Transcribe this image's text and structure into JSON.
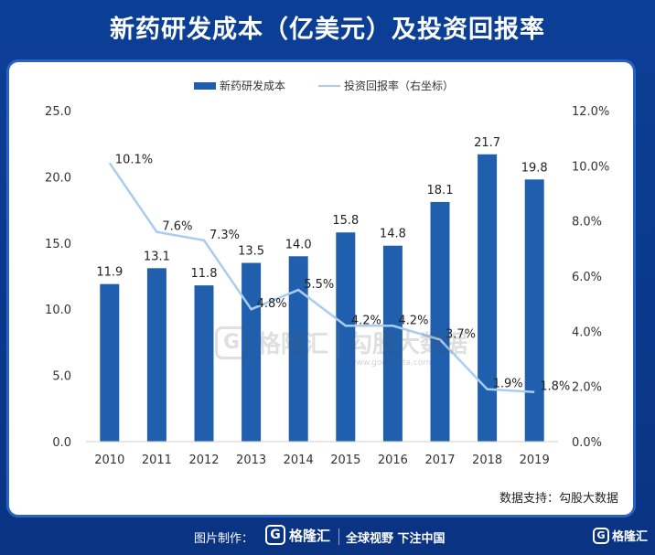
{
  "title": "新药研发成本（亿美元）及投资回报率",
  "source": "数据支持：勾股大数据",
  "footer": {
    "made_by": "图片制作：",
    "logo_text": "格隆汇",
    "slogan": "全球视野 下注中国",
    "corner_logo": "格隆汇"
  },
  "watermark": {
    "left": "格隆汇",
    "right": "勾股大数据",
    "sub": "www.gogudata.com"
  },
  "colors": {
    "bar": "#1f5fae",
    "line": "#a9cdf0",
    "background": "#0a3a8c"
  },
  "chart_data": {
    "type": "bar",
    "categories": [
      "2010",
      "2011",
      "2012",
      "2013",
      "2014",
      "2015",
      "2016",
      "2017",
      "2018",
      "2019"
    ],
    "series": [
      {
        "name": "新药研发成本",
        "type": "bar",
        "axis": "left",
        "values": [
          11.9,
          13.1,
          11.8,
          13.5,
          14.0,
          15.8,
          14.8,
          18.1,
          21.7,
          19.8
        ],
        "labels": [
          "11.9",
          "13.1",
          "11.8",
          "13.5",
          "14.0",
          "15.8",
          "14.8",
          "18.1",
          "21.7",
          "19.8"
        ]
      },
      {
        "name": "投资回报率（右坐标）",
        "type": "line",
        "axis": "right",
        "values": [
          10.1,
          7.6,
          7.3,
          4.8,
          5.5,
          4.2,
          4.2,
          3.7,
          1.9,
          1.8
        ],
        "labels": [
          "10.1%",
          "7.6%",
          "7.3%",
          "4.8%",
          "5.5%",
          "4.2%",
          "4.2%",
          "3.7%",
          "1.9%",
          "1.8%"
        ]
      }
    ],
    "ylim": [
      0,
      25
    ],
    "yticks": [
      "0.0",
      "5.0",
      "10.0",
      "15.0",
      "20.0",
      "25.0"
    ],
    "y2lim": [
      0,
      12
    ],
    "y2ticks": [
      "0.0%",
      "2.0%",
      "4.0%",
      "6.0%",
      "8.0%",
      "10.0%",
      "12.0%"
    ],
    "legend": "top-center",
    "grid": false
  }
}
